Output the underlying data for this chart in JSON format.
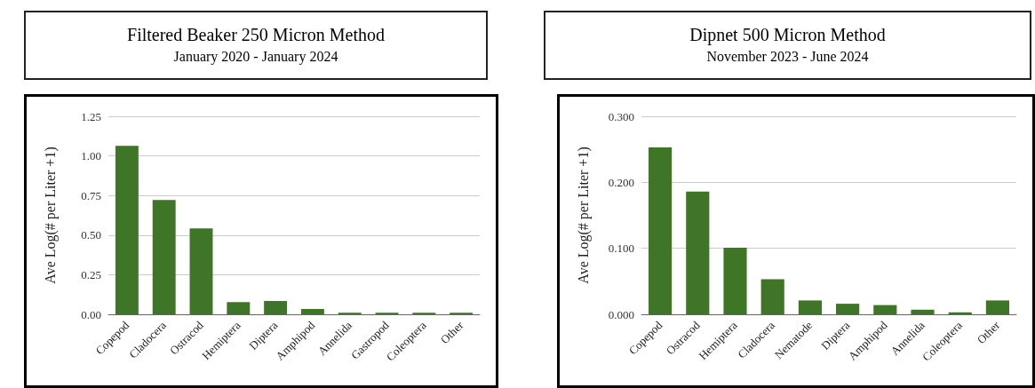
{
  "chart_data": [
    {
      "type": "bar",
      "title": "Filtered Beaker 250 Micron Method",
      "subtitle": "January 2020 - January 2024",
      "ylabel": "Ave Log(# per Liter +1)",
      "categories": [
        "Copepod",
        "Cladocera",
        "Ostracod",
        "Hemiptera",
        "Diptera",
        "Amphipod",
        "Annelida",
        "Gastropod",
        "Coleoptera",
        "Other"
      ],
      "values": [
        1.063,
        0.722,
        0.542,
        0.077,
        0.084,
        0.033,
        0.01,
        0.01,
        0.01,
        0.01
      ],
      "color": "#3f7526",
      "ylim": [
        0,
        1.25
      ],
      "yticks": [
        {
          "value": 0,
          "label": "0.00"
        },
        {
          "value": 0.25,
          "label": "0.25"
        },
        {
          "value": 0.5,
          "label": "0.50"
        },
        {
          "value": 0.75,
          "label": "0.75"
        },
        {
          "value": 1,
          "label": "1.00"
        },
        {
          "value": 1.25,
          "label": "1.25"
        }
      ],
      "grid": "y"
    },
    {
      "type": "bar",
      "title": "Dipnet 500 Micron Method",
      "subtitle": "November 2023 - June 2024",
      "ylabel": "Ave Log(# per Liter +1)",
      "categories": [
        "Copepod",
        "Ostracod",
        "Hemiptera",
        "Cladocera",
        "Nematode",
        "Diptera",
        "Amphipod",
        "Annelida",
        "Coleoptera",
        "Other"
      ],
      "values": [
        0.253,
        0.186,
        0.101,
        0.053,
        0.021,
        0.016,
        0.014,
        0.007,
        0.003,
        0.021
      ],
      "color": "#3f7526",
      "ylim": [
        0,
        0.3
      ],
      "yticks": [
        {
          "value": 0,
          "label": "0.000"
        },
        {
          "value": 0.1,
          "label": "0.100"
        },
        {
          "value": 0.2,
          "label": "0.200"
        },
        {
          "value": 0.3,
          "label": "0.300"
        }
      ],
      "grid": "y"
    }
  ]
}
